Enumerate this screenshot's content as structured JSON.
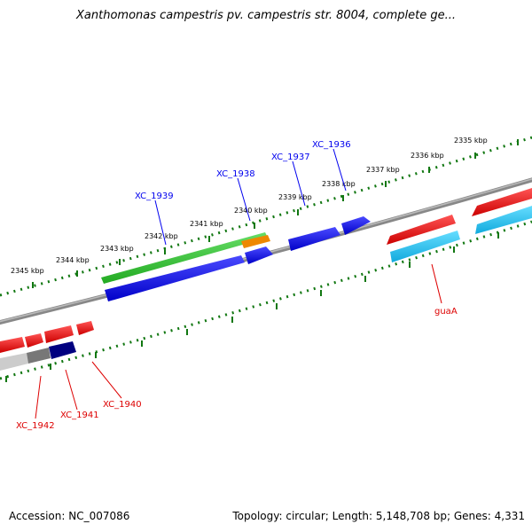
{
  "title": "Xanthomonas campestris pv. campestris str. 8004, complete ge...",
  "accession": "Accession: NC_007086",
  "topology": "Topology: circular; Length: 5,148,708 bp; Genes: 4,331",
  "ticks": [
    "2335 kbp",
    "2336 kbp",
    "2337 kbp",
    "2338 kbp",
    "2339 kbp",
    "2340 kbp",
    "2341 kbp",
    "2342 kbp",
    "2343 kbp",
    "2344 kbp",
    "2345 kbp"
  ],
  "genes": [
    {
      "name": "XC_1936",
      "strand": "forward",
      "color": "#0000ee"
    },
    {
      "name": "XC_1937",
      "strand": "forward",
      "color": "#0000ee"
    },
    {
      "name": "XC_1938",
      "strand": "forward",
      "color": "#0000ee"
    },
    {
      "name": "XC_1939",
      "strand": "forward",
      "color": "#0000ee"
    },
    {
      "name": "guaA",
      "strand": "reverse",
      "color": "#dd0000"
    },
    {
      "name": "XC_1940",
      "strand": "reverse",
      "color": "#dd0000"
    },
    {
      "name": "XC_1941",
      "strand": "reverse",
      "color": "#dd0000"
    },
    {
      "name": "XC_1942",
      "strand": "reverse",
      "color": "#dd0000"
    }
  ],
  "colors": {
    "forward_cds": "#0000ee",
    "reverse_cds": "#ee0000",
    "gene_green": "#33bb33",
    "rrna_orange": "#ee8800",
    "cyan": "#22bbee",
    "navy": "#000080",
    "backbone": "#888888",
    "tick": "#117711"
  }
}
